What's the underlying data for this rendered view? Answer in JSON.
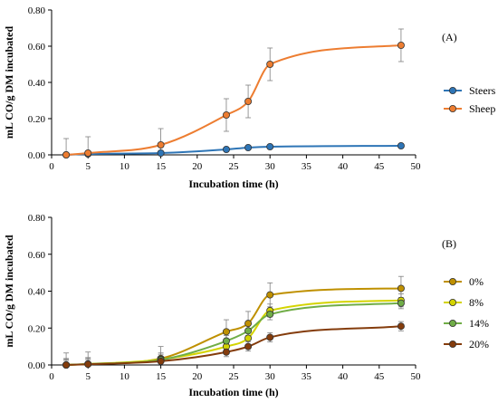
{
  "chart_data": [
    {
      "type": "line",
      "panel_label": "(A)",
      "xlabel": "Incubation time (h)",
      "ylabel": "mL CO/g DM incubated",
      "xlim": [
        0,
        50
      ],
      "ylim": [
        0,
        0.8
      ],
      "x_ticks": [
        "0",
        "5",
        "10",
        "15",
        "20",
        "25",
        "30",
        "35",
        "40",
        "45",
        "50"
      ],
      "y_ticks": [
        "0.00",
        "0.20",
        "0.40",
        "0.60",
        "0.80"
      ],
      "grid": false,
      "legend_position": "right",
      "x": [
        2,
        5,
        15,
        24,
        27,
        30,
        48
      ],
      "series": [
        {
          "name": "Steers",
          "color": "#2E75B6",
          "values": [
            0.0,
            0.005,
            0.01,
            0.03,
            0.04,
            0.045,
            0.05
          ],
          "errors": [
            0,
            0,
            0,
            0,
            0,
            0,
            0
          ]
        },
        {
          "name": "Sheep",
          "color": "#ED7D31",
          "values": [
            0.0,
            0.01,
            0.055,
            0.22,
            0.295,
            0.5,
            0.605
          ],
          "errors": [
            0.09,
            0.09,
            0.09,
            0.09,
            0.09,
            0.09,
            0.09
          ]
        }
      ]
    },
    {
      "type": "line",
      "panel_label": "(B)",
      "xlabel": "Incubation time (h)",
      "ylabel": "mL CO/g DM incubated",
      "xlim": [
        0,
        50
      ],
      "ylim": [
        0,
        0.8
      ],
      "x_ticks": [
        "0",
        "5",
        "10",
        "15",
        "20",
        "25",
        "30",
        "35",
        "40",
        "45",
        "50"
      ],
      "y_ticks": [
        "0.00",
        "0.20",
        "0.40",
        "0.60",
        "0.80"
      ],
      "grid": false,
      "legend_position": "right",
      "x": [
        2,
        5,
        15,
        24,
        27,
        30,
        48
      ],
      "series": [
        {
          "name": "0%",
          "color": "#BF9000",
          "values": [
            0.0,
            0.005,
            0.035,
            0.18,
            0.225,
            0.38,
            0.415
          ],
          "errors": [
            0.065,
            0.065,
            0.065,
            0.065,
            0.065,
            0.065,
            0.065
          ]
        },
        {
          "name": "8%",
          "color": "#D4D400",
          "values": [
            0.0,
            0.005,
            0.03,
            0.1,
            0.145,
            0.295,
            0.35
          ],
          "errors": [
            0.035,
            0.035,
            0.035,
            0.035,
            0.035,
            0.035,
            0.035
          ]
        },
        {
          "name": "14%",
          "color": "#70AD47",
          "values": [
            0.0,
            0.005,
            0.028,
            0.13,
            0.185,
            0.275,
            0.335
          ],
          "errors": [
            0.03,
            0.03,
            0.03,
            0.03,
            0.03,
            0.03,
            0.03
          ]
        },
        {
          "name": "20%",
          "color": "#843C0C",
          "values": [
            0.0,
            0.004,
            0.02,
            0.07,
            0.1,
            0.15,
            0.21
          ],
          "errors": [
            0.025,
            0.025,
            0.025,
            0.025,
            0.025,
            0.025,
            0.025
          ]
        }
      ]
    }
  ]
}
